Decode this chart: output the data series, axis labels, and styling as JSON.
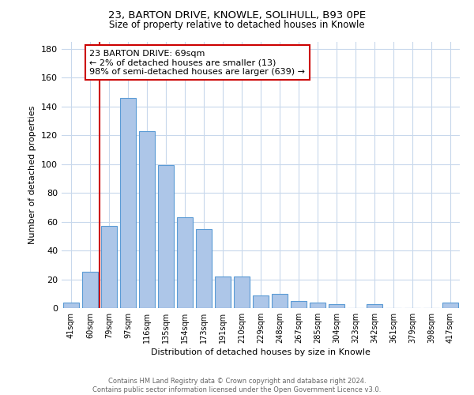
{
  "title": "23, BARTON DRIVE, KNOWLE, SOLIHULL, B93 0PE",
  "subtitle": "Size of property relative to detached houses in Knowle",
  "xlabel": "Distribution of detached houses by size in Knowle",
  "ylabel": "Number of detached properties",
  "bar_labels": [
    "41sqm",
    "60sqm",
    "79sqm",
    "97sqm",
    "116sqm",
    "135sqm",
    "154sqm",
    "173sqm",
    "191sqm",
    "210sqm",
    "229sqm",
    "248sqm",
    "267sqm",
    "285sqm",
    "304sqm",
    "323sqm",
    "342sqm",
    "361sqm",
    "379sqm",
    "398sqm",
    "417sqm"
  ],
  "bar_values": [
    4,
    25,
    57,
    146,
    123,
    99,
    63,
    55,
    22,
    22,
    9,
    10,
    5,
    4,
    3,
    0,
    3,
    0,
    0,
    0,
    4
  ],
  "bar_color": "#adc6e8",
  "bar_edge_color": "#5b9bd5",
  "highlight_line_color": "#cc0000",
  "annotation_title": "23 BARTON DRIVE: 69sqm",
  "annotation_line1": "← 2% of detached houses are smaller (13)",
  "annotation_line2": "98% of semi-detached houses are larger (639) →",
  "annotation_box_edge": "#cc0000",
  "ylim": [
    0,
    185
  ],
  "yticks": [
    0,
    20,
    40,
    60,
    80,
    100,
    120,
    140,
    160,
    180
  ],
  "footer_line1": "Contains HM Land Registry data © Crown copyright and database right 2024.",
  "footer_line2": "Contains public sector information licensed under the Open Government Licence v3.0.",
  "background_color": "#ffffff",
  "grid_color": "#c8d8ec"
}
